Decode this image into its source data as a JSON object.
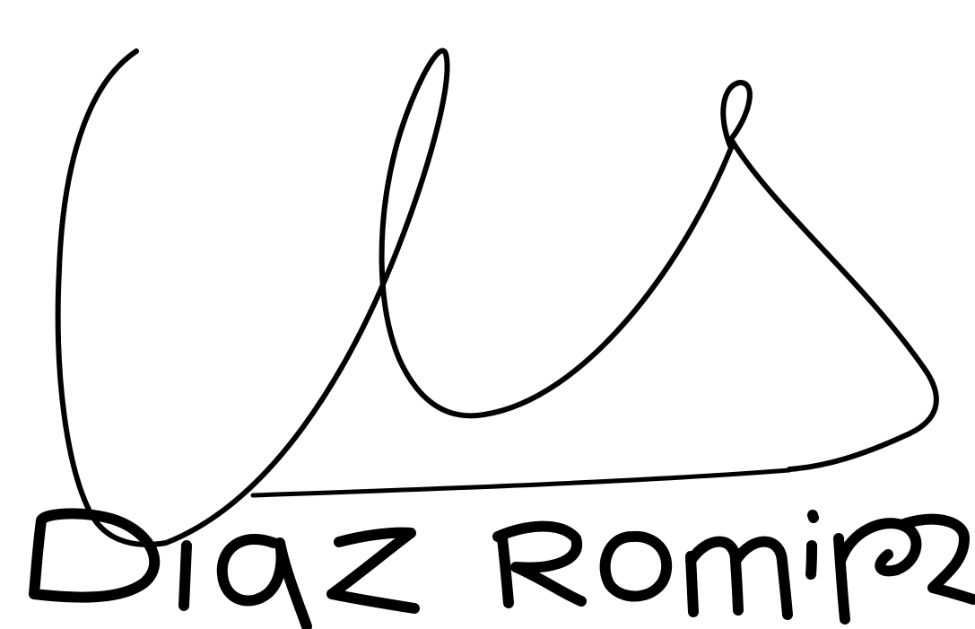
{
  "signature": {
    "handwritten_text": "Diaz Romina",
    "ink_color": "#000000",
    "background_color": "#ffffff"
  }
}
